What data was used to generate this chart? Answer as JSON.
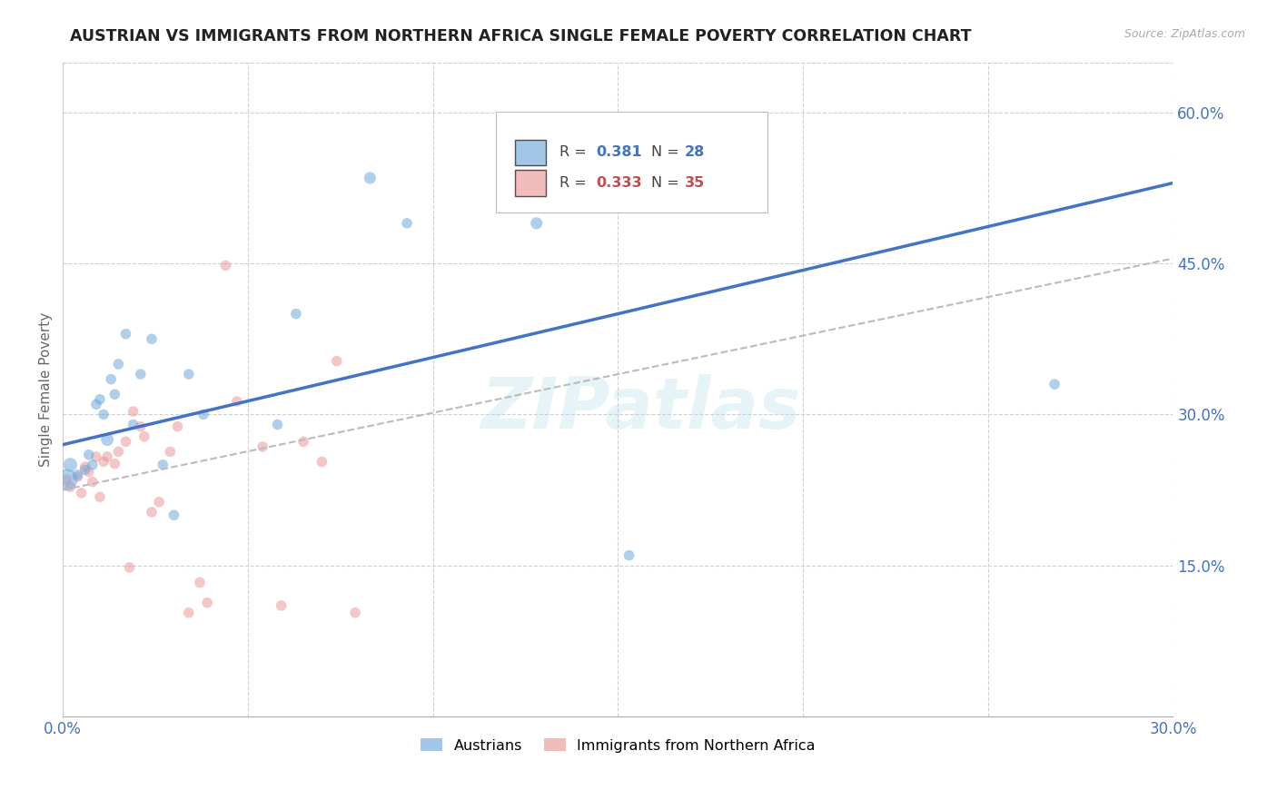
{
  "title": "AUSTRIAN VS IMMIGRANTS FROM NORTHERN AFRICA SINGLE FEMALE POVERTY CORRELATION CHART",
  "source": "Source: ZipAtlas.com",
  "ylabel": "Single Female Poverty",
  "watermark": "ZIPatlas",
  "xlim": [
    0.0,
    0.3
  ],
  "ylim": [
    0.0,
    0.65
  ],
  "xticks": [
    0.0,
    0.05,
    0.1,
    0.15,
    0.2,
    0.25,
    0.3
  ],
  "xtick_labels": [
    "0.0%",
    "",
    "",
    "",
    "",
    "",
    "30.0%"
  ],
  "ytick_positions": [
    0.15,
    0.3,
    0.45,
    0.6
  ],
  "ytick_labels": [
    "15.0%",
    "30.0%",
    "45.0%",
    "60.0%"
  ],
  "color_blue": "#6fa8dc",
  "color_pink": "#ea9999",
  "color_blue_line": "#4472c4",
  "color_pink_line": "#c0504d",
  "color_gray_dashed": "#bbbbbb",
  "color_axis_labels": "#4472c4",
  "background_color": "#ffffff",
  "grid_color": "#d0d0d0",
  "austrians": {
    "x": [
      0.001,
      0.002,
      0.004,
      0.006,
      0.007,
      0.008,
      0.009,
      0.01,
      0.011,
      0.012,
      0.013,
      0.014,
      0.015,
      0.017,
      0.019,
      0.021,
      0.024,
      0.027,
      0.03,
      0.034,
      0.038,
      0.058,
      0.063,
      0.083,
      0.093,
      0.128,
      0.153,
      0.268
    ],
    "y": [
      0.235,
      0.25,
      0.24,
      0.245,
      0.26,
      0.25,
      0.31,
      0.315,
      0.3,
      0.275,
      0.335,
      0.32,
      0.35,
      0.38,
      0.29,
      0.34,
      0.375,
      0.25,
      0.2,
      0.34,
      0.3,
      0.29,
      0.4,
      0.535,
      0.49,
      0.49,
      0.16,
      0.33
    ],
    "sizes": [
      300,
      120,
      70,
      70,
      70,
      70,
      70,
      70,
      70,
      100,
      70,
      70,
      70,
      70,
      70,
      70,
      70,
      70,
      70,
      70,
      70,
      70,
      70,
      90,
      70,
      90,
      70,
      70
    ]
  },
  "immigrants": {
    "x": [
      0.001,
      0.002,
      0.004,
      0.005,
      0.006,
      0.007,
      0.008,
      0.009,
      0.01,
      0.011,
      0.012,
      0.014,
      0.015,
      0.017,
      0.018,
      0.019,
      0.021,
      0.022,
      0.024,
      0.026,
      0.029,
      0.031,
      0.034,
      0.037,
      0.039,
      0.044,
      0.047,
      0.054,
      0.059,
      0.065,
      0.07,
      0.074,
      0.079
    ],
    "y": [
      0.235,
      0.228,
      0.238,
      0.222,
      0.248,
      0.243,
      0.233,
      0.258,
      0.218,
      0.253,
      0.258,
      0.251,
      0.263,
      0.273,
      0.148,
      0.303,
      0.288,
      0.278,
      0.203,
      0.213,
      0.263,
      0.288,
      0.103,
      0.133,
      0.113,
      0.448,
      0.313,
      0.268,
      0.11,
      0.273,
      0.253,
      0.353,
      0.103
    ],
    "sizes": [
      70,
      70,
      70,
      70,
      70,
      70,
      70,
      70,
      70,
      70,
      70,
      70,
      70,
      70,
      70,
      70,
      70,
      70,
      70,
      70,
      70,
      70,
      70,
      70,
      70,
      70,
      70,
      70,
      70,
      70,
      70,
      70,
      70
    ]
  },
  "blue_line": {
    "x0": 0.0,
    "y0": 0.27,
    "x1": 0.3,
    "y1": 0.53
  },
  "pink_dashed_line": {
    "x0": 0.0,
    "y0": 0.225,
    "x1": 0.3,
    "y1": 0.455
  }
}
